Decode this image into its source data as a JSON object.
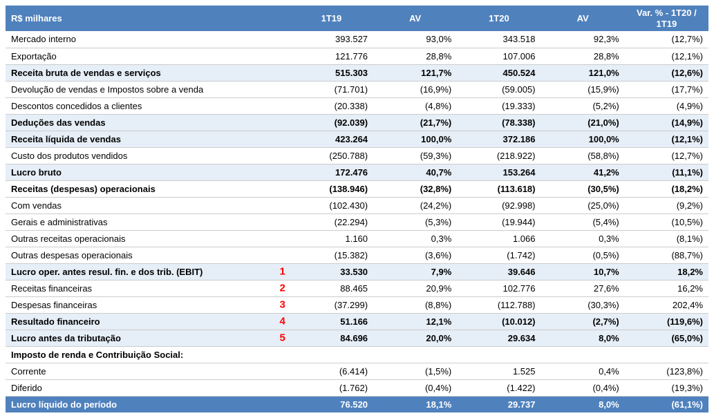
{
  "header": {
    "label": "R$ milhares",
    "c1": "1T19",
    "c2": "AV",
    "c3": "1T20",
    "c4": "AV",
    "c5": "Var. % - 1T20 / 1T19"
  },
  "rows": [
    {
      "label": "Mercado interno",
      "c1": "393.527",
      "c2": "93,0%",
      "c3": "343.518",
      "c4": "92,3%",
      "c5": "(12,7%)",
      "bold": false,
      "shade": false
    },
    {
      "label": "Exportação",
      "c1": "121.776",
      "c2": "28,8%",
      "c3": "107.006",
      "c4": "28,8%",
      "c5": "(12,1%)",
      "bold": false,
      "shade": false
    },
    {
      "label": "Receita bruta de vendas e serviços",
      "c1": "515.303",
      "c2": "121,7%",
      "c3": "450.524",
      "c4": "121,0%",
      "c5": "(12,6%)",
      "bold": true,
      "shade": true
    },
    {
      "label": "Devolução de vendas e Impostos sobre a venda",
      "c1": "(71.701)",
      "c2": "(16,9%)",
      "c3": "(59.005)",
      "c4": "(15,9%)",
      "c5": "(17,7%)",
      "bold": false,
      "shade": false
    },
    {
      "label": "Descontos concedidos a clientes",
      "c1": "(20.338)",
      "c2": "(4,8%)",
      "c3": "(19.333)",
      "c4": "(5,2%)",
      "c5": "(4,9%)",
      "bold": false,
      "shade": false
    },
    {
      "label": "Deduções das vendas",
      "c1": "(92.039)",
      "c2": "(21,7%)",
      "c3": "(78.338)",
      "c4": "(21,0%)",
      "c5": "(14,9%)",
      "bold": true,
      "shade": true
    },
    {
      "label": "Receita líquida de vendas",
      "c1": "423.264",
      "c2": "100,0%",
      "c3": "372.186",
      "c4": "100,0%",
      "c5": "(12,1%)",
      "bold": true,
      "shade": true
    },
    {
      "label": "Custo dos produtos vendidos",
      "c1": "(250.788)",
      "c2": "(59,3%)",
      "c3": "(218.922)",
      "c4": "(58,8%)",
      "c5": "(12,7%)",
      "bold": false,
      "shade": false
    },
    {
      "label": "Lucro bruto",
      "c1": "172.476",
      "c2": "40,7%",
      "c3": "153.264",
      "c4": "41,2%",
      "c5": "(11,1%)",
      "bold": true,
      "shade": true
    },
    {
      "label": "Receitas (despesas) operacionais",
      "c1": "(138.946)",
      "c2": "(32,8%)",
      "c3": "(113.618)",
      "c4": "(30,5%)",
      "c5": "(18,2%)",
      "bold": true,
      "shade": false
    },
    {
      "label": "Com vendas",
      "c1": "(102.430)",
      "c2": "(24,2%)",
      "c3": "(92.998)",
      "c4": "(25,0%)",
      "c5": "(9,2%)",
      "bold": false,
      "shade": false
    },
    {
      "label": "Gerais e administrativas",
      "c1": "(22.294)",
      "c2": "(5,3%)",
      "c3": "(19.944)",
      "c4": "(5,4%)",
      "c5": "(10,5%)",
      "bold": false,
      "shade": false
    },
    {
      "label": "Outras receitas operacionais",
      "c1": "1.160",
      "c2": "0,3%",
      "c3": "1.066",
      "c4": "0,3%",
      "c5": "(8,1%)",
      "bold": false,
      "shade": false
    },
    {
      "label": "Outras despesas operacionais",
      "c1": "(15.382)",
      "c2": "(3,6%)",
      "c3": "(1.742)",
      "c4": "(0,5%)",
      "c5": "(88,7%)",
      "bold": false,
      "shade": false
    },
    {
      "label": "Lucro oper. antes resul. fin. e dos trib. (EBIT)",
      "c1": "33.530",
      "c2": "7,9%",
      "c3": "39.646",
      "c4": "10,7%",
      "c5": "18,2%",
      "bold": true,
      "shade": true,
      "ann": "1"
    },
    {
      "label": "Receitas financeiras",
      "c1": "88.465",
      "c2": "20,9%",
      "c3": "102.776",
      "c4": "27,6%",
      "c5": "16,2%",
      "bold": false,
      "shade": false,
      "ann": "2"
    },
    {
      "label": "Despesas financeiras",
      "c1": "(37.299)",
      "c2": "(8,8%)",
      "c3": "(112.788)",
      "c4": "(30,3%)",
      "c5": "202,4%",
      "bold": false,
      "shade": false,
      "ann": "3"
    },
    {
      "label": "Resultado financeiro",
      "c1": "51.166",
      "c2": "12,1%",
      "c3": "(10.012)",
      "c4": "(2,7%)",
      "c5": "(119,6%)",
      "bold": true,
      "shade": true,
      "ann": "4"
    },
    {
      "label": "Lucro antes da tributação",
      "c1": "84.696",
      "c2": "20,0%",
      "c3": "29.634",
      "c4": "8,0%",
      "c5": "(65,0%)",
      "bold": true,
      "shade": true,
      "ann": "5"
    },
    {
      "label": "Imposto de renda e Contribuição Social:",
      "c1": "",
      "c2": "",
      "c3": "",
      "c4": "",
      "c5": "",
      "bold": true,
      "shade": false
    },
    {
      "label": "Corrente",
      "c1": "(6.414)",
      "c2": "(1,5%)",
      "c3": "1.525",
      "c4": "0,4%",
      "c5": "(123,8%)",
      "bold": false,
      "shade": false
    },
    {
      "label": "Diferido",
      "c1": "(1.762)",
      "c2": "(0,4%)",
      "c3": "(1.422)",
      "c4": "(0,4%)",
      "c5": "(19,3%)",
      "bold": false,
      "shade": false
    }
  ],
  "footer": {
    "label": "Lucro líquido do período",
    "c1": "76.520",
    "c2": "18,1%",
    "c3": "29.737",
    "c4": "8,0%",
    "c5": "(61,1%)"
  },
  "colors": {
    "header_bg": "#4f81bd",
    "header_fg": "#ffffff",
    "shade_bg": "#e6eef7",
    "border": "#cccccc",
    "annotation": "#ff0000"
  }
}
